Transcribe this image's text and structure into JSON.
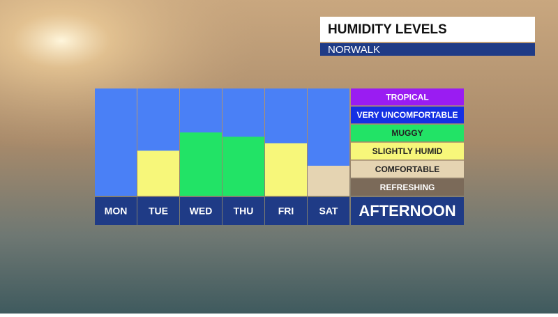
{
  "chart_data": {
    "type": "bar",
    "title": "HUMIDITY LEVELS",
    "subtitle": "NORWALK",
    "categories": [
      "MON",
      "TUE",
      "WED",
      "THU",
      "FRI",
      "SAT"
    ],
    "values": [
      0,
      42,
      59,
      55,
      49,
      28
    ],
    "colors": [
      "#f7f77a",
      "#f7f77a",
      "#22e366",
      "#22e366",
      "#f7f77a",
      "#e5d4b2"
    ],
    "background_color": "#4a80f6",
    "ylim": [
      0,
      100
    ],
    "period": "AFTERNOON",
    "levels": [
      {
        "name": "TROPICAL",
        "color": "#9a1cf2"
      },
      {
        "name": "VERY UNCOMFORTABLE",
        "color": "#1530e3"
      },
      {
        "name": "MUGGY",
        "color": "#22e366"
      },
      {
        "name": "SLIGHTLY HUMID",
        "color": "#f7f77a"
      },
      {
        "name": "COMFORTABLE",
        "color": "#e5d4b2"
      },
      {
        "name": "REFRESHING",
        "color": "#7b6a59"
      }
    ]
  }
}
